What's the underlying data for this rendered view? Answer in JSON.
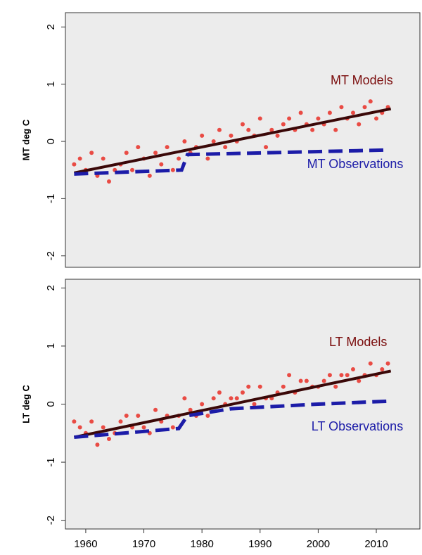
{
  "chart_data": [
    {
      "type": "scatter",
      "ylabel": "MT deg C",
      "xlim": [
        1956.5,
        2017.5
      ],
      "ylim": [
        -2.2,
        2.25
      ],
      "yticks": [
        -2,
        -1,
        0,
        1,
        2
      ],
      "series": [
        {
          "name": "MT Models",
          "color": "#e8231a",
          "x": [
            1958,
            1959,
            1960,
            1961,
            1962,
            1963,
            1964,
            1965,
            1966,
            1967,
            1968,
            1969,
            1970,
            1971,
            1972,
            1973,
            1974,
            1975,
            1976,
            1977,
            1978,
            1979,
            1980,
            1981,
            1982,
            1983,
            1984,
            1985,
            1986,
            1987,
            1988,
            1989,
            1990,
            1991,
            1992,
            1993,
            1994,
            1995,
            1996,
            1997,
            1998,
            1999,
            2000,
            2001,
            2002,
            2003,
            2004,
            2005,
            2006,
            2007,
            2008,
            2009,
            2010,
            2011,
            2012
          ],
          "values": [
            -0.4,
            -0.3,
            -0.5,
            -0.2,
            -0.6,
            -0.3,
            -0.7,
            -0.5,
            -0.4,
            -0.2,
            -0.5,
            -0.1,
            -0.3,
            -0.6,
            -0.2,
            -0.4,
            -0.1,
            -0.5,
            -0.3,
            0.0,
            -0.2,
            -0.1,
            0.1,
            -0.3,
            0.0,
            0.2,
            -0.1,
            0.1,
            0.0,
            0.3,
            0.2,
            0.1,
            0.4,
            -0.1,
            0.2,
            0.1,
            0.3,
            0.4,
            0.2,
            0.5,
            0.3,
            0.2,
            0.4,
            0.3,
            0.5,
            0.2,
            0.6,
            0.4,
            0.5,
            0.3,
            0.6,
            0.7,
            0.4,
            0.5,
            0.6
          ]
        },
        {
          "name": "MT Observations",
          "color": "#1c1ca8",
          "x": [
            1958,
            1976.5,
            1977.5,
            2012
          ],
          "values": [
            -0.57,
            -0.5,
            -0.23,
            -0.15
          ]
        }
      ],
      "trend": {
        "color": "#3a0808",
        "x": [
          1958,
          2012.5
        ],
        "values": [
          -0.55,
          0.57
        ]
      }
    },
    {
      "type": "scatter",
      "ylabel": "LT deg C",
      "xlim": [
        1956.5,
        2017.5
      ],
      "ylim": [
        -2.15,
        2.15
      ],
      "yticks": [
        -2,
        -1,
        0,
        1,
        2
      ],
      "xticks": [
        1960,
        1970,
        1980,
        1990,
        2000,
        2010
      ],
      "series": [
        {
          "name": "LT Models",
          "color": "#e8231a",
          "x": [
            1958,
            1959,
            1960,
            1961,
            1962,
            1963,
            1964,
            1965,
            1966,
            1967,
            1968,
            1969,
            1970,
            1971,
            1972,
            1973,
            1974,
            1975,
            1976,
            1977,
            1978,
            1979,
            1980,
            1981,
            1982,
            1983,
            1984,
            1985,
            1986,
            1987,
            1988,
            1989,
            1990,
            1991,
            1992,
            1993,
            1994,
            1995,
            1996,
            1997,
            1998,
            1999,
            2000,
            2001,
            2002,
            2003,
            2004,
            2005,
            2006,
            2007,
            2008,
            2009,
            2010,
            2011,
            2012
          ],
          "values": [
            -0.3,
            -0.4,
            -0.5,
            -0.3,
            -0.7,
            -0.4,
            -0.6,
            -0.5,
            -0.3,
            -0.2,
            -0.4,
            -0.2,
            -0.4,
            -0.5,
            -0.1,
            -0.3,
            -0.2,
            -0.4,
            -0.2,
            0.1,
            -0.1,
            -0.2,
            0.0,
            -0.2,
            0.1,
            0.2,
            0.0,
            0.1,
            0.1,
            0.2,
            0.3,
            0.0,
            0.3,
            0.1,
            0.1,
            0.2,
            0.3,
            0.5,
            0.2,
            0.4,
            0.4,
            0.3,
            0.3,
            0.4,
            0.5,
            0.3,
            0.5,
            0.5,
            0.6,
            0.4,
            0.5,
            0.7,
            0.5,
            0.6,
            0.7
          ]
        },
        {
          "name": "LT Observations",
          "color": "#1c1ca8",
          "x": [
            1958,
            1976,
            1977.5,
            1985,
            2000,
            2012
          ],
          "values": [
            -0.57,
            -0.42,
            -0.2,
            -0.08,
            0.0,
            0.05
          ]
        }
      ],
      "trend": {
        "color": "#3a0808",
        "x": [
          1958,
          2012.5
        ],
        "values": [
          -0.57,
          0.57
        ]
      }
    }
  ]
}
